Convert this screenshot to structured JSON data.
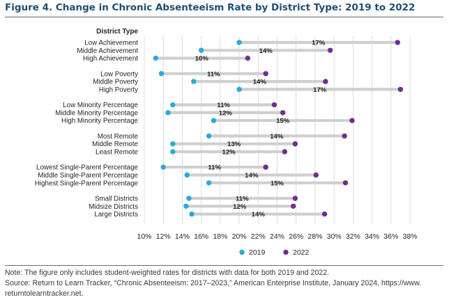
{
  "title": "Figure 4. Change in Chronic Absenteeism Rate by District Type: 2019 to 2022",
  "colors": {
    "y2019": "#2aa9e0",
    "y2022": "#6e2f8f",
    "title": "#1f4e79"
  },
  "chart_data": {
    "type": "dumbbell",
    "orientation": "horizontal",
    "yaxis_title": "District Type",
    "xlim": [
      10,
      38
    ],
    "xticks": [
      10,
      12,
      14,
      16,
      18,
      20,
      22,
      24,
      26,
      28,
      30,
      32,
      34,
      36,
      38
    ],
    "xtick_labels": [
      "10%",
      "12%",
      "14%",
      "16%",
      "18%",
      "20%",
      "22%",
      "24%",
      "26%",
      "28%",
      "30%",
      "32%",
      "34%",
      "36%",
      "38%"
    ],
    "legend": {
      "placement": "bottom",
      "items": [
        {
          "label": "2019",
          "color": "#2aa9e0"
        },
        {
          "label": "2022",
          "color": "#6e2f8f"
        }
      ]
    },
    "groups": [
      {
        "rows": [
          {
            "label": "Low Achievement",
            "v2019": 20,
            "v2022": 36.7,
            "change": "17%"
          },
          {
            "label": "Middle Achievement",
            "v2019": 16,
            "v2022": 29.6,
            "change": "14%"
          },
          {
            "label": "High Achievement",
            "v2019": 11.2,
            "v2022": 20.9,
            "change": "10%"
          }
        ]
      },
      {
        "rows": [
          {
            "label": "Low Poverty",
            "v2019": 11.8,
            "v2022": 22.8,
            "change": "11%"
          },
          {
            "label": "Middle Poverty",
            "v2019": 15.2,
            "v2022": 29.1,
            "change": "14%"
          },
          {
            "label": "High Poverty",
            "v2019": 20,
            "v2022": 37,
            "change": "17%"
          }
        ]
      },
      {
        "rows": [
          {
            "label": "Low Minority Percentage",
            "v2019": 13,
            "v2022": 23.7,
            "change": "11%"
          },
          {
            "label": "Middle Minority Percentage",
            "v2019": 12.5,
            "v2022": 24.6,
            "change": "12%"
          },
          {
            "label": "High Minority Percentage",
            "v2019": 17.3,
            "v2022": 31.9,
            "change": "15%"
          }
        ]
      },
      {
        "rows": [
          {
            "label": "Most Remote",
            "v2019": 16.8,
            "v2022": 31.1,
            "change": "14%"
          },
          {
            "label": "Middle Remote",
            "v2019": 13,
            "v2022": 25.9,
            "change": "13%"
          },
          {
            "label": "Least Remote",
            "v2019": 13,
            "v2022": 24.8,
            "change": "12%"
          }
        ]
      },
      {
        "rows": [
          {
            "label": "Lowest Single-Parent Percentage",
            "v2019": 12,
            "v2022": 22.8,
            "change": "11%"
          },
          {
            "label": "Middle Single-Parent Percentage",
            "v2019": 14.5,
            "v2022": 28.1,
            "change": "14%"
          },
          {
            "label": "Highest Single-Parent Percentage",
            "v2019": 16.8,
            "v2022": 31.2,
            "change": "15%"
          }
        ]
      },
      {
        "rows": [
          {
            "label": "Small Districts",
            "v2019": 14.7,
            "v2022": 25.9,
            "change": "11%"
          },
          {
            "label": "Midsize Districts",
            "v2019": 14.4,
            "v2022": 25.7,
            "change": "12%"
          },
          {
            "label": "Large Districts",
            "v2019": 15,
            "v2022": 29,
            "change": "14%"
          }
        ]
      }
    ]
  },
  "notes": {
    "note": "Note: The figure only includes student-weighted rates for districts with data for both 2019 and 2022.",
    "source": "Source: Return to Learn Tracker, “Chronic Absenteeism: 2017–2023,” American Enterprise Institute, January 2024, https://www.",
    "source_cont": "returntolearntracker.net."
  }
}
